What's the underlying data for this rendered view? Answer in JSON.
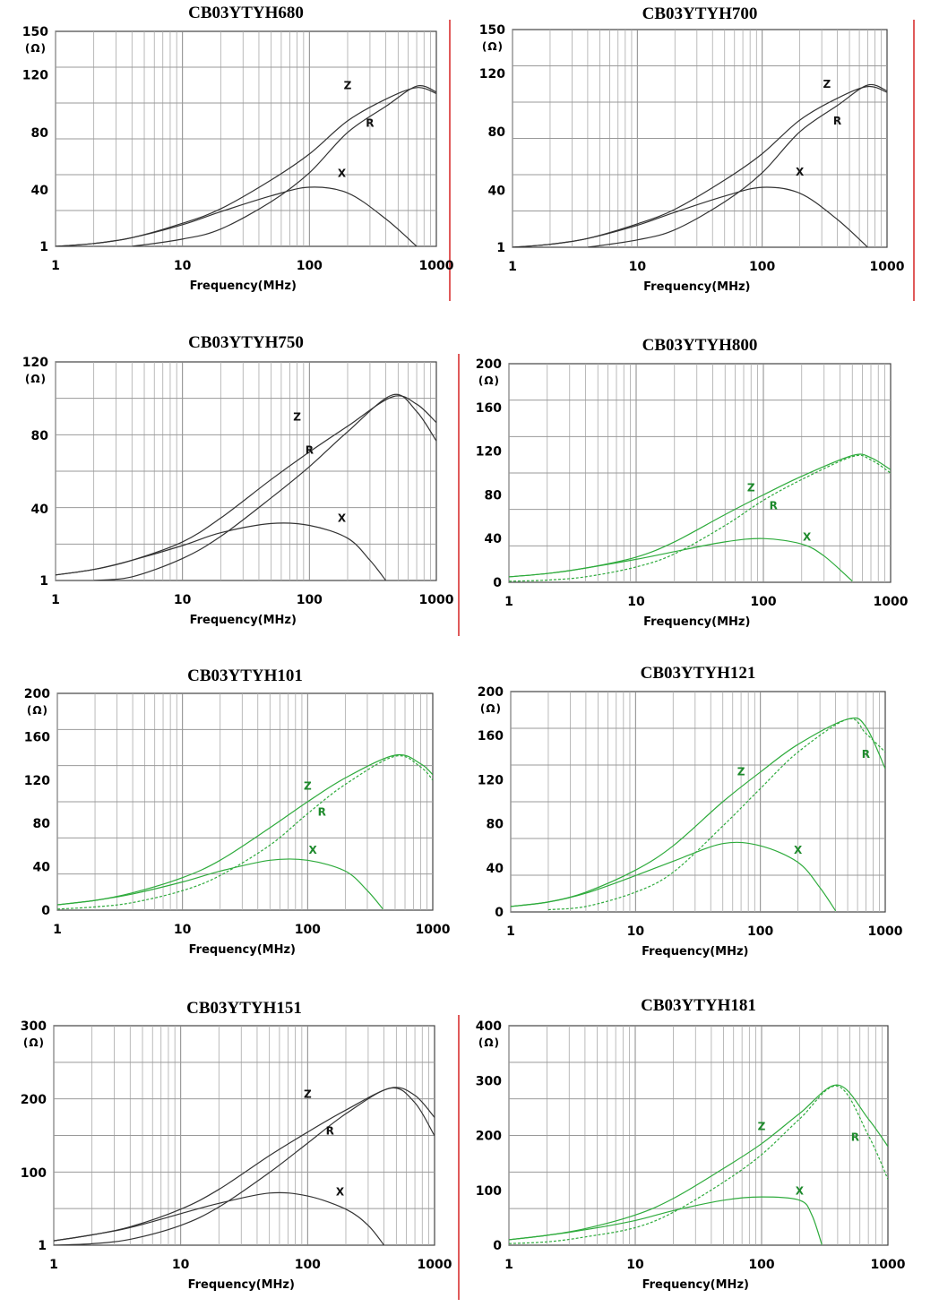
{
  "chart_data": [
    {
      "type": "line",
      "title": "CB03YTYH680",
      "xlabel": "Frequency(MHz)",
      "ylabel": "(Ω)",
      "xscale": "log",
      "xlim": [
        1,
        1000
      ],
      "ylim": [
        1,
        150
      ],
      "x_ticks": [
        "1",
        "10",
        "100",
        "1000"
      ],
      "y_ticks": [
        "1",
        "40",
        "80",
        "120",
        "150"
      ],
      "y_tick_values": [
        1,
        40,
        80,
        120,
        150
      ],
      "line_color": "#333333",
      "grid": true,
      "series": [
        {
          "name": "Z",
          "x": [
            1,
            2,
            4,
            10,
            20,
            50,
            100,
            200,
            400,
            700,
            1000
          ],
          "y": [
            1,
            3,
            7,
            17,
            27,
            47,
            65,
            88,
            103,
            111,
            107
          ]
        },
        {
          "name": "R",
          "x": [
            4,
            10,
            20,
            50,
            100,
            200,
            400,
            700,
            1000
          ],
          "y": [
            1,
            6,
            13,
            32,
            52,
            80,
            98,
            112,
            108
          ]
        },
        {
          "name": "X",
          "x": [
            1,
            2,
            4,
            10,
            20,
            50,
            100,
            200,
            400,
            700
          ],
          "y": [
            1,
            3,
            7,
            16,
            25,
            36,
            42,
            38,
            20,
            1
          ]
        }
      ],
      "annotations": [
        {
          "text": "Z",
          "x": 200,
          "y": 110
        },
        {
          "text": "R",
          "x": 300,
          "y": 84
        },
        {
          "text": "X",
          "x": 180,
          "y": 49
        }
      ]
    },
    {
      "type": "line",
      "title": "CB03YTYH700",
      "xlabel": "Frequency(MHz)",
      "ylabel": "(Ω)",
      "xscale": "log",
      "xlim": [
        1,
        1000
      ],
      "ylim": [
        1,
        150
      ],
      "x_ticks": [
        "1",
        "10",
        "100",
        "1000"
      ],
      "y_ticks": [
        "1",
        "40",
        "80",
        "120",
        "150"
      ],
      "y_tick_values": [
        1,
        40,
        80,
        120,
        150
      ],
      "line_color": "#333333",
      "grid": true,
      "series": [
        {
          "name": "Z",
          "x": [
            1,
            2,
            4,
            10,
            20,
            50,
            100,
            200,
            400,
            700,
            1000
          ],
          "y": [
            1,
            3,
            7,
            17,
            27,
            47,
            65,
            88,
            103,
            111,
            107
          ]
        },
        {
          "name": "R",
          "x": [
            4,
            10,
            20,
            50,
            100,
            200,
            400,
            700,
            1000
          ],
          "y": [
            1,
            6,
            13,
            32,
            52,
            80,
            98,
            112,
            108
          ]
        },
        {
          "name": "X",
          "x": [
            1,
            2,
            4,
            10,
            20,
            50,
            100,
            200,
            400,
            700
          ],
          "y": [
            1,
            3,
            7,
            16,
            25,
            36,
            42,
            38,
            20,
            1
          ]
        }
      ],
      "annotations": [
        {
          "text": "Z",
          "x": 330,
          "y": 110
        },
        {
          "text": "R",
          "x": 400,
          "y": 85
        },
        {
          "text": "X",
          "x": 200,
          "y": 50
        }
      ]
    },
    {
      "type": "line",
      "title": "CB03YTYH750",
      "xlabel": "Frequency(MHz)",
      "ylabel": "(Ω)",
      "xscale": "log",
      "xlim": [
        1,
        1000
      ],
      "ylim": [
        1,
        120
      ],
      "x_ticks": [
        "1",
        "10",
        "100",
        "1000"
      ],
      "y_ticks": [
        "1",
        "40",
        "80",
        "120"
      ],
      "y_tick_values": [
        1,
        40,
        80,
        120
      ],
      "line_color": "#333333",
      "grid": true,
      "series": [
        {
          "name": "Z",
          "x": [
            1,
            2,
            4,
            10,
            20,
            50,
            100,
            200,
            450,
            700,
            1000
          ],
          "y": [
            4,
            7,
            12,
            22,
            35,
            56,
            71,
            85,
            101,
            97,
            87
          ]
        },
        {
          "name": "R",
          "x": [
            2,
            4,
            10,
            20,
            50,
            100,
            200,
            450,
            700,
            1000
          ],
          "y": [
            1,
            3,
            13,
            25,
            46,
            63,
            82,
            102,
            93,
            77
          ]
        },
        {
          "name": "X",
          "x": [
            1,
            2,
            4,
            10,
            20,
            50,
            100,
            200,
            300,
            400
          ],
          "y": [
            4,
            7,
            12,
            20,
            27,
            32,
            31,
            24,
            12,
            1
          ]
        }
      ],
      "annotations": [
        {
          "text": "Z",
          "x": 80,
          "y": 88
        },
        {
          "text": "R",
          "x": 100,
          "y": 70
        },
        {
          "text": "X",
          "x": 180,
          "y": 33
        }
      ]
    },
    {
      "type": "line",
      "title": "CB03YTYH800",
      "xlabel": "Frequency(MHz)",
      "ylabel": "(Ω)",
      "xscale": "log",
      "xlim": [
        1,
        1000
      ],
      "ylim": [
        0,
        200
      ],
      "x_ticks": [
        "1",
        "10",
        "100",
        "1000"
      ],
      "y_ticks": [
        "0",
        "40",
        "80",
        "120",
        "160",
        "200"
      ],
      "y_tick_values": [
        0,
        40,
        80,
        120,
        160,
        200
      ],
      "line_color": "#2eab3c",
      "grid": true,
      "series": [
        {
          "name": "Z",
          "x": [
            1,
            2,
            4,
            10,
            20,
            50,
            100,
            200,
            500,
            700,
            1000
          ],
          "y": [
            5,
            8,
            13,
            23,
            37,
            62,
            80,
            97,
            116,
            114,
            103
          ]
        },
        {
          "name": "R",
          "x": [
            1,
            2,
            4,
            10,
            20,
            50,
            100,
            200,
            500,
            700,
            1000
          ],
          "y": [
            1,
            2,
            5,
            14,
            26,
            52,
            75,
            94,
            115,
            112,
            100
          ]
        },
        {
          "name": "X",
          "x": [
            1,
            2,
            4,
            10,
            20,
            50,
            100,
            200,
            300,
            500
          ],
          "y": [
            5,
            8,
            13,
            21,
            28,
            37,
            40,
            35,
            24,
            1
          ]
        }
      ],
      "annotations": [
        {
          "text": "Z",
          "x": 80,
          "y": 83
        },
        {
          "text": "R",
          "x": 120,
          "y": 67
        },
        {
          "text": "X",
          "x": 220,
          "y": 38
        }
      ]
    },
    {
      "type": "line",
      "title": "CB03YTYH101",
      "xlabel": "Frequency(MHz)",
      "ylabel": "(Ω)",
      "xscale": "log",
      "xlim": [
        1,
        1000
      ],
      "ylim": [
        0,
        200
      ],
      "x_ticks": [
        "1",
        "10",
        "100",
        "1000"
      ],
      "y_ticks": [
        "0",
        "40",
        "80",
        "120",
        "160",
        "200"
      ],
      "y_tick_values": [
        0,
        40,
        80,
        120,
        160,
        200
      ],
      "line_color": "#2eab3c",
      "grid": true,
      "series": [
        {
          "name": "Z",
          "x": [
            1,
            2,
            4,
            10,
            20,
            50,
            100,
            200,
            500,
            800,
            1000
          ],
          "y": [
            5,
            9,
            16,
            30,
            46,
            76,
            100,
            122,
            143,
            135,
            125
          ]
        },
        {
          "name": "R",
          "x": [
            1,
            2,
            4,
            10,
            20,
            50,
            100,
            200,
            500,
            800,
            1000
          ],
          "y": [
            1,
            3,
            7,
            18,
            32,
            60,
            89,
            116,
            142,
            132,
            120
          ]
        },
        {
          "name": "X",
          "x": [
            1,
            2,
            4,
            10,
            20,
            50,
            100,
            200,
            300,
            400
          ],
          "y": [
            5,
            9,
            15,
            26,
            36,
            46,
            46,
            36,
            18,
            1
          ]
        }
      ],
      "annotations": [
        {
          "text": "Z",
          "x": 100,
          "y": 111
        },
        {
          "text": "R",
          "x": 130,
          "y": 87
        },
        {
          "text": "X",
          "x": 110,
          "y": 52
        }
      ]
    },
    {
      "type": "line",
      "title": "CB03YTYH121",
      "xlabel": "Frequency(MHz)",
      "ylabel": "(Ω)",
      "xscale": "log",
      "xlim": [
        1,
        1000
      ],
      "ylim": [
        0,
        200
      ],
      "x_ticks": [
        "1",
        "10",
        "100",
        "1000"
      ],
      "y_ticks": [
        "0",
        "40",
        "80",
        "120",
        "160",
        "200"
      ],
      "y_tick_values": [
        0,
        40,
        80,
        120,
        160,
        200
      ],
      "line_color": "#2eab3c",
      "grid": true,
      "series": [
        {
          "name": "Z",
          "x": [
            1,
            2,
            4,
            10,
            20,
            50,
            100,
            200,
            500,
            700,
            1000
          ],
          "y": [
            5,
            9,
            18,
            38,
            60,
            100,
            127,
            152,
            175,
            168,
            130
          ]
        },
        {
          "name": "R",
          "x": [
            2,
            4,
            10,
            20,
            50,
            100,
            200,
            500,
            700,
            1000
          ],
          "y": [
            2,
            5,
            18,
            36,
            78,
            112,
            145,
            175,
            162,
            145
          ]
        },
        {
          "name": "X",
          "x": [
            1,
            2,
            4,
            10,
            20,
            50,
            100,
            200,
            300,
            400
          ],
          "y": [
            5,
            9,
            17,
            33,
            46,
            62,
            60,
            45,
            22,
            1
          ]
        }
      ],
      "annotations": [
        {
          "text": "Z",
          "x": 70,
          "y": 124
        },
        {
          "text": "R",
          "x": 700,
          "y": 140
        },
        {
          "text": "X",
          "x": 200,
          "y": 53
        }
      ]
    },
    {
      "type": "line",
      "title": "CB03YTYH151",
      "xlabel": "Frequency(MHz)",
      "ylabel": "(Ω)",
      "xscale": "log",
      "xlim": [
        1,
        1000
      ],
      "ylim": [
        1,
        300
      ],
      "x_ticks": [
        "1",
        "10",
        "100",
        "1000"
      ],
      "y_ticks": [
        "1",
        "100",
        "200",
        "300"
      ],
      "y_tick_values": [
        1,
        100,
        200,
        300
      ],
      "line_color": "#333333",
      "grid": true,
      "series": [
        {
          "name": "Z",
          "x": [
            1,
            2,
            4,
            10,
            20,
            50,
            100,
            200,
            450,
            700,
            1000
          ],
          "y": [
            7,
            15,
            26,
            50,
            77,
            123,
            155,
            185,
            215,
            205,
            175
          ]
        },
        {
          "name": "R",
          "x": [
            1,
            2,
            4,
            10,
            20,
            50,
            100,
            200,
            450,
            700,
            1000
          ],
          "y": [
            1,
            3,
            9,
            28,
            53,
            100,
            140,
            180,
            215,
            195,
            150
          ]
        },
        {
          "name": "X",
          "x": [
            1,
            2,
            4,
            10,
            20,
            50,
            100,
            200,
            300,
            400
          ],
          "y": [
            7,
            15,
            25,
            44,
            58,
            72,
            68,
            50,
            28,
            1
          ]
        }
      ],
      "annotations": [
        {
          "text": "Z",
          "x": 100,
          "y": 202
        },
        {
          "text": "R",
          "x": 150,
          "y": 152
        },
        {
          "text": "X",
          "x": 180,
          "y": 69
        }
      ]
    },
    {
      "type": "line",
      "title": "CB03YTYH181",
      "xlabel": "Frequency(MHz)",
      "ylabel": "(Ω)",
      "xscale": "log",
      "xlim": [
        1,
        1000
      ],
      "ylim": [
        0,
        400
      ],
      "x_ticks": [
        "1",
        "10",
        "100",
        "1000"
      ],
      "y_ticks": [
        "0",
        "100",
        "200",
        "300",
        "400"
      ],
      "y_tick_values": [
        0,
        100,
        200,
        300,
        400
      ],
      "line_color": "#2eab3c",
      "grid": true,
      "series": [
        {
          "name": "Z",
          "x": [
            1,
            2,
            4,
            10,
            20,
            50,
            100,
            200,
            400,
            700,
            1000
          ],
          "y": [
            10,
            18,
            30,
            55,
            85,
            140,
            185,
            240,
            292,
            230,
            180
          ]
        },
        {
          "name": "R",
          "x": [
            1,
            2,
            4,
            10,
            20,
            50,
            100,
            200,
            400,
            700,
            1000
          ],
          "y": [
            3,
            6,
            15,
            32,
            60,
            115,
            165,
            230,
            290,
            200,
            120
          ]
        },
        {
          "name": "X",
          "x": [
            1,
            2,
            4,
            10,
            20,
            50,
            100,
            200,
            250,
            300
          ],
          "y": [
            10,
            18,
            28,
            45,
            63,
            82,
            88,
            82,
            55,
            1
          ]
        }
      ],
      "annotations": [
        {
          "text": "Z",
          "x": 100,
          "y": 210
        },
        {
          "text": "R",
          "x": 550,
          "y": 190
        },
        {
          "text": "X",
          "x": 200,
          "y": 92
        }
      ]
    }
  ]
}
